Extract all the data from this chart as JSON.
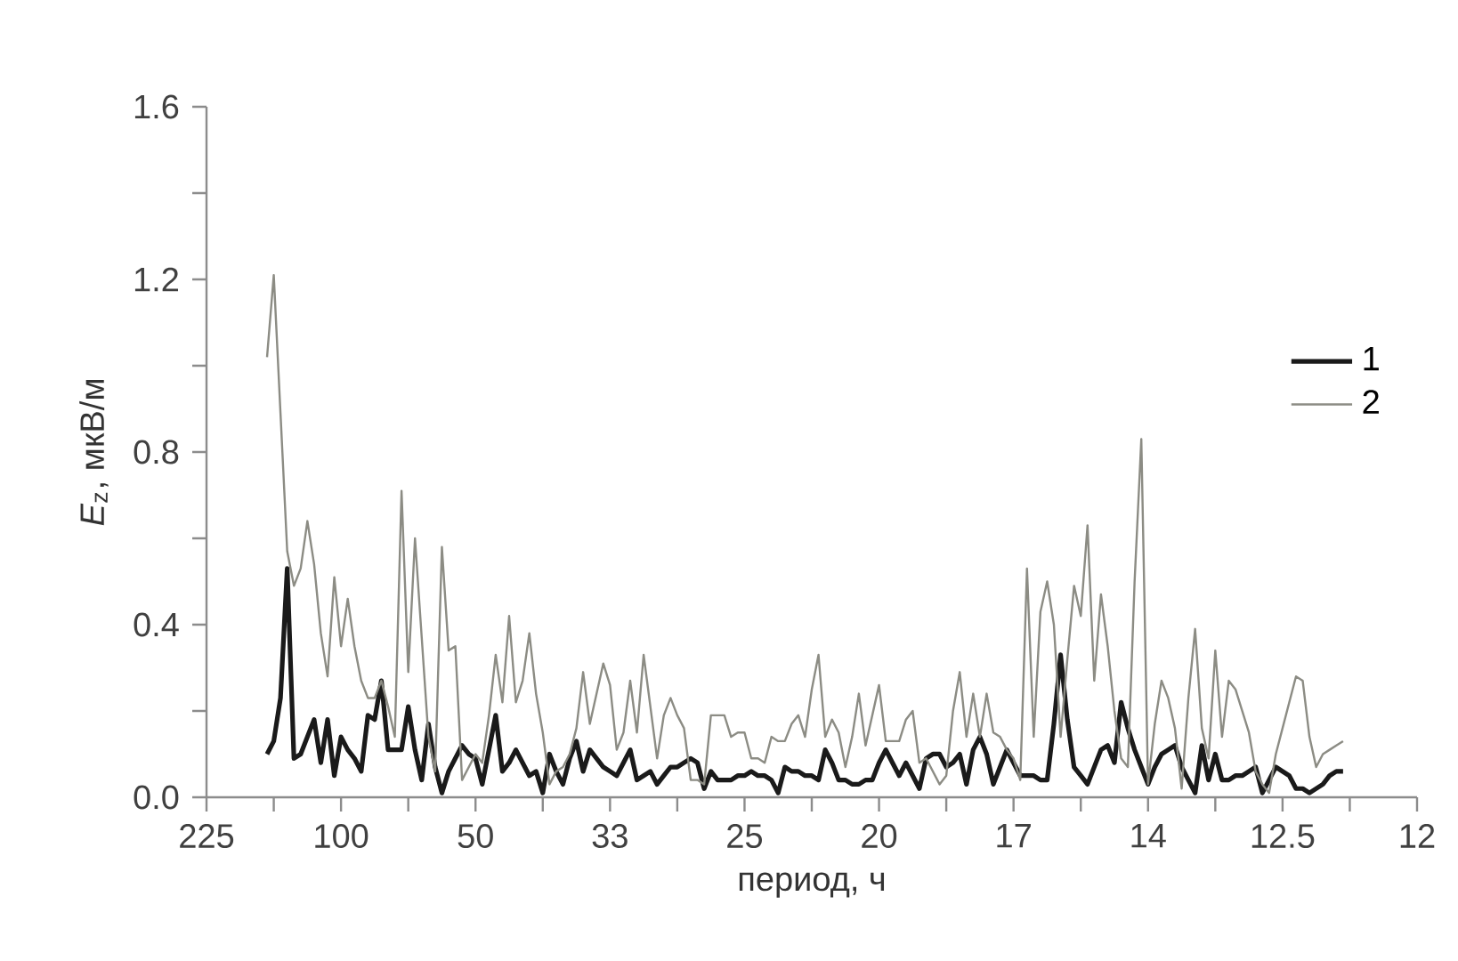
{
  "chart_data": {
    "type": "line",
    "xlabel": "период, ч",
    "ylabel": "*E*$_{z}$, мкВ/м",
    "ylim": [
      0,
      1.6
    ],
    "yticks": [
      {
        "value": 0,
        "label": "0.0"
      },
      {
        "value": 0.4,
        "label": "0.4"
      },
      {
        "value": 0.8,
        "label": "0.8"
      },
      {
        "value": 1.2,
        "label": "1.2"
      },
      {
        "value": 1.6,
        "label": "1.6"
      }
    ],
    "categories": [
      "225",
      null,
      null,
      null,
      null,
      null,
      null,
      null,
      null,
      null,
      null,
      null,
      null,
      null,
      null,
      null,
      null,
      null,
      null,
      null,
      "100",
      null,
      null,
      null,
      null,
      null,
      null,
      null,
      null,
      null,
      null,
      null,
      null,
      null,
      null,
      null,
      null,
      null,
      null,
      null,
      "50",
      null,
      null,
      null,
      null,
      null,
      null,
      null,
      null,
      null,
      null,
      null,
      null,
      null,
      null,
      null,
      null,
      null,
      null,
      null,
      "33",
      null,
      null,
      null,
      null,
      null,
      null,
      null,
      null,
      null,
      null,
      null,
      null,
      null,
      null,
      null,
      null,
      null,
      null,
      null,
      "25",
      null,
      null,
      null,
      null,
      null,
      null,
      null,
      null,
      null,
      null,
      null,
      null,
      null,
      null,
      null,
      null,
      null,
      null,
      null,
      "20",
      null,
      null,
      null,
      null,
      null,
      null,
      null,
      null,
      null,
      null,
      null,
      null,
      null,
      null,
      null,
      null,
      null,
      null,
      null,
      "17",
      null,
      null,
      null,
      null,
      null,
      null,
      null,
      null,
      null,
      null,
      null,
      null,
      null,
      null,
      null,
      null,
      null,
      null,
      null,
      "14",
      null,
      null,
      null,
      null,
      null,
      null,
      null,
      null,
      null,
      null,
      null,
      null,
      null,
      null,
      null,
      null,
      null,
      null,
      null,
      "12.5",
      null,
      null,
      null,
      null,
      null,
      null,
      null,
      null,
      null,
      null,
      null,
      null,
      null,
      null,
      null,
      null,
      null,
      null,
      null,
      "12"
    ],
    "legend": "right",
    "series": [
      {
        "name": "1",
        "color": "#1a1a1a",
        "values": [
          null,
          null,
          null,
          null,
          null,
          null,
          null,
          null,
          null,
          0.1,
          0.13,
          0.23,
          0.53,
          0.09,
          0.1,
          0.14,
          0.18,
          0.08,
          0.18,
          0.05,
          0.14,
          0.11,
          0.09,
          0.06,
          0.19,
          0.18,
          0.27,
          0.11,
          0.11,
          0.11,
          0.21,
          0.11,
          0.04,
          0.17,
          0.07,
          0.01,
          0.06,
          0.09,
          0.12,
          0.1,
          0.09,
          0.03,
          0.11,
          0.19,
          0.06,
          0.08,
          0.11,
          0.08,
          0.05,
          0.06,
          0.01,
          0.1,
          0.06,
          0.03,
          0.09,
          0.13,
          0.06,
          0.11,
          0.09,
          0.07,
          0.06,
          0.05,
          0.08,
          0.11,
          0.04,
          0.05,
          0.06,
          0.03,
          0.05,
          0.07,
          0.07,
          0.08,
          0.09,
          0.08,
          0.02,
          0.06,
          0.04,
          0.04,
          0.04,
          0.05,
          0.05,
          0.06,
          0.05,
          0.05,
          0.04,
          0.01,
          0.07,
          0.06,
          0.06,
          0.05,
          0.05,
          0.04,
          0.11,
          0.08,
          0.04,
          0.04,
          0.03,
          0.03,
          0.04,
          0.04,
          0.08,
          0.11,
          0.08,
          0.05,
          0.08,
          0.05,
          0.02,
          0.09,
          0.1,
          0.1,
          0.07,
          0.08,
          0.1,
          0.03,
          0.11,
          0.14,
          0.1,
          0.03,
          0.07,
          0.11,
          0.08,
          0.05,
          0.05,
          0.05,
          0.04,
          0.04,
          0.17,
          0.33,
          0.18,
          0.07,
          0.05,
          0.03,
          0.07,
          0.11,
          0.12,
          0.08,
          0.22,
          0.16,
          0.11,
          0.07,
          0.03,
          0.07,
          0.1,
          0.11,
          0.12,
          0.07,
          0.04,
          0.01,
          0.12,
          0.04,
          0.1,
          0.04,
          0.04,
          0.05,
          0.05,
          0.06,
          0.07,
          0.01,
          0.04,
          0.07,
          0.06,
          0.05,
          0.02,
          0.02,
          0.01,
          0.02,
          0.03,
          0.05,
          0.06,
          0.06,
          null,
          null,
          null,
          null,
          null,
          null,
          null,
          null,
          null,
          null,
          null
        ]
      },
      {
        "name": "2",
        "color": "#8c8c84",
        "values": [
          null,
          null,
          null,
          null,
          null,
          null,
          null,
          null,
          null,
          1.02,
          1.21,
          0.89,
          0.57,
          0.49,
          0.53,
          0.64,
          0.54,
          0.38,
          0.28,
          0.51,
          0.35,
          0.46,
          0.35,
          0.27,
          0.23,
          0.23,
          0.27,
          0.21,
          0.14,
          0.71,
          0.29,
          0.6,
          0.37,
          0.14,
          0.06,
          0.58,
          0.34,
          0.35,
          0.04,
          0.07,
          0.1,
          0.08,
          0.19,
          0.33,
          0.22,
          0.42,
          0.22,
          0.27,
          0.38,
          0.24,
          0.15,
          0.03,
          0.06,
          0.07,
          0.1,
          0.16,
          0.29,
          0.17,
          0.24,
          0.31,
          0.26,
          0.11,
          0.15,
          0.27,
          0.15,
          0.33,
          0.21,
          0.09,
          0.19,
          0.23,
          0.19,
          0.16,
          0.04,
          0.04,
          0.03,
          0.19,
          0.19,
          0.19,
          0.14,
          0.15,
          0.15,
          0.09,
          0.09,
          0.08,
          0.14,
          0.13,
          0.13,
          0.17,
          0.19,
          0.14,
          0.25,
          0.33,
          0.14,
          0.18,
          0.15,
          0.07,
          0.14,
          0.24,
          0.12,
          0.19,
          0.26,
          0.13,
          0.13,
          0.13,
          0.18,
          0.2,
          0.08,
          0.09,
          0.06,
          0.03,
          0.05,
          0.2,
          0.29,
          0.14,
          0.24,
          0.14,
          0.24,
          0.15,
          0.14,
          0.11,
          0.09,
          0.04,
          0.53,
          0.14,
          0.43,
          0.5,
          0.4,
          0.14,
          0.32,
          0.49,
          0.42,
          0.63,
          0.27,
          0.47,
          0.35,
          0.2,
          0.09,
          0.07,
          0.5,
          0.83,
          0.03,
          0.17,
          0.27,
          0.23,
          0.16,
          0.02,
          0.23,
          0.39,
          0.16,
          0.09,
          0.34,
          0.14,
          0.27,
          0.25,
          0.2,
          0.15,
          0.06,
          0.03,
          0.01,
          0.1,
          0.16,
          0.22,
          0.28,
          0.27,
          0.14,
          0.07,
          0.1,
          0.11,
          0.12,
          0.13,
          null,
          null,
          null,
          null,
          null,
          null,
          null,
          null,
          null,
          null,
          null
        ]
      }
    ]
  }
}
